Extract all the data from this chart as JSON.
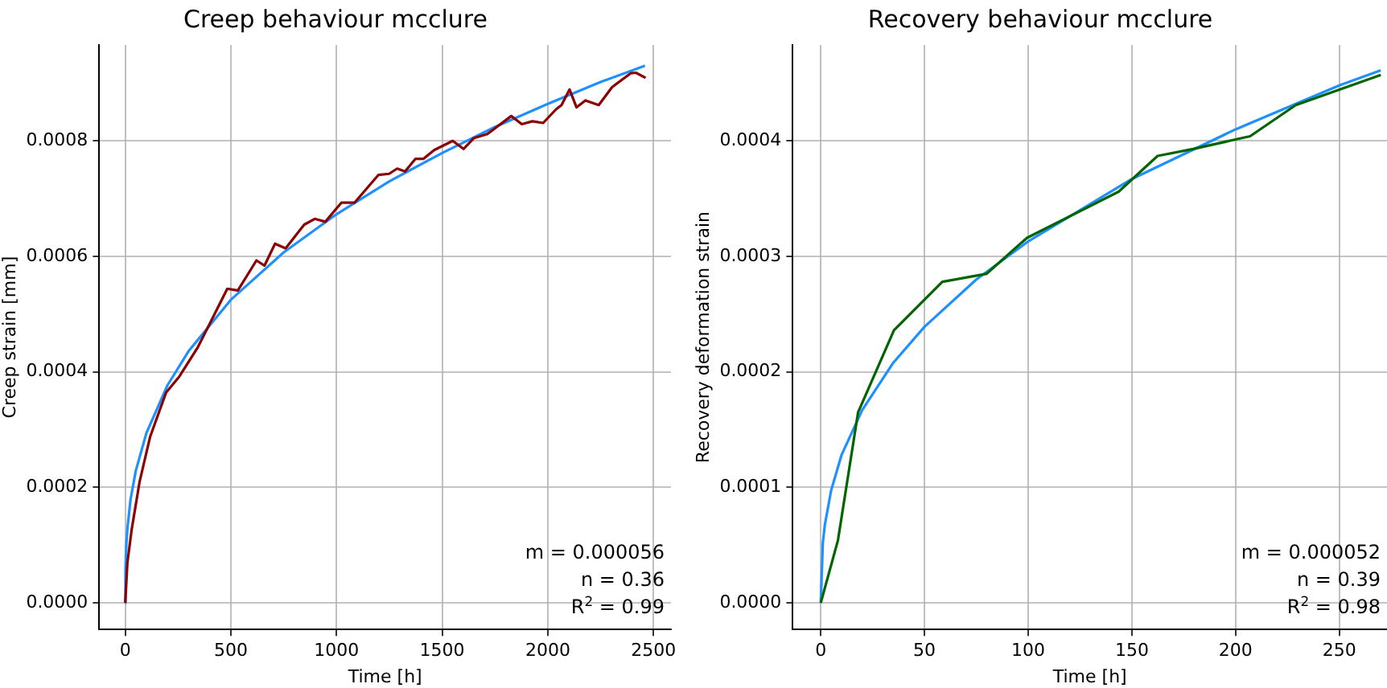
{
  "chart_data": [
    {
      "type": "line",
      "title": "Creep behaviour mcclure",
      "xlabel": "Time [h]",
      "ylabel": "Creep strain [mm]",
      "xlim": [
        -123,
        2583
      ],
      "xticks": [
        0,
        500,
        1000,
        1500,
        2000,
        2500
      ],
      "ylim": [
        -4.6e-05,
        0.000966
      ],
      "yticks": [
        {
          "value": 0,
          "label": "0.0000"
        },
        {
          "value": 0.0002,
          "label": "0.0002"
        },
        {
          "value": 0.0004,
          "label": "0.0004"
        },
        {
          "value": 0.0006,
          "label": "0.0006"
        },
        {
          "value": 0.0008,
          "label": "0.0008"
        }
      ],
      "grid": true,
      "marker": "none",
      "line_style": "solid",
      "annotations": [
        "m = 0.000056",
        "n = 0.36",
        "R$^{2}$ = 0.99"
      ],
      "series": [
        {
          "color": "#8b0000",
          "x": [
            0,
            10,
            30,
            68,
            118,
            193,
            256,
            344,
            420,
            483,
            533,
            621,
            659,
            709,
            759,
            847,
            897,
            947,
            1023,
            1085,
            1198,
            1249,
            1287,
            1324,
            1374,
            1412,
            1462,
            1550,
            1601,
            1651,
            1714,
            1827,
            1877,
            1927,
            1978,
            2040,
            2065,
            2103,
            2136,
            2178,
            2241,
            2304,
            2392,
            2417,
            2463
          ],
          "values": [
            0,
            6.9e-05,
            0.000126,
            0.00021,
            0.000288,
            0.000364,
            0.000392,
            0.000443,
            0.000498,
            0.000544,
            0.000541,
            0.000593,
            0.000584,
            0.000622,
            0.000614,
            0.000655,
            0.000665,
            0.00066,
            0.000693,
            0.000693,
            0.000741,
            0.000743,
            0.000752,
            0.000747,
            0.000769,
            0.000769,
            0.000784,
            0.0008,
            0.000786,
            0.000805,
            0.000812,
            0.000843,
            0.000829,
            0.000834,
            0.000831,
            0.000855,
            0.000862,
            0.000889,
            0.000858,
            0.00087,
            0.000862,
            0.000893,
            0.000917,
            0.000918,
            0.000909
          ]
        },
        {
          "type": "line",
          "color": "#1e90ff",
          "x": [
            0,
            1,
            5,
            10,
            25,
            50,
            100,
            200,
            300,
            500,
            750,
            1000,
            1250,
            1500,
            1750,
            2000,
            2250,
            2460
          ],
          "values": [
            0,
            5.6e-05,
            0.0001,
            0.000128,
            0.000179,
            0.000229,
            0.000294,
            0.000377,
            0.000436,
            0.000525,
            0.000607,
            0.000673,
            0.00073,
            0.000779,
            0.000824,
            0.000864,
            0.000902,
            0.00093
          ]
        }
      ]
    },
    {
      "type": "line",
      "title": "Recovery behaviour mcclure",
      "xlabel": "Time [h]",
      "ylabel": "Recovery deformation strain",
      "xlim": [
        -13.5,
        273
      ],
      "xticks": [
        0,
        50,
        100,
        150,
        200,
        250
      ],
      "ylim": [
        -2.3e-05,
        0.000483
      ],
      "yticks": [
        {
          "value": 0,
          "label": "0.0000"
        },
        {
          "value": 0.0001,
          "label": "0.0001"
        },
        {
          "value": 0.0002,
          "label": "0.0002"
        },
        {
          "value": 0.0003,
          "label": "0.0003"
        },
        {
          "value": 0.0004,
          "label": "0.0004"
        }
      ],
      "grid": true,
      "marker": "none",
      "line_style": "solid",
      "annotations": [
        "m = 0.000052",
        "n = 0.39",
        "R$^{2}$ = 0.98"
      ],
      "series": [
        {
          "color": "#006400",
          "x": [
            0,
            8.3,
            18,
            35.3,
            58.6,
            80,
            99.4,
            143.6,
            162.4,
            179.5,
            207,
            229,
            270
          ],
          "values": [
            0,
            5.43e-05,
            0.000165,
            0.000236,
            0.000278,
            0.000285,
            0.000316,
            0.000356,
            0.000387,
            0.000393,
            0.000404,
            0.000431,
            0.000457
          ]
        },
        {
          "type": "line",
          "color": "#1e90ff",
          "x": [
            0,
            1,
            2,
            5,
            10,
            20,
            35,
            50,
            75,
            100,
            150,
            200,
            250,
            270
          ],
          "values": [
            0,
            5.2e-05,
            6.8e-05,
            9.74e-05,
            0.000128,
            0.000167,
            0.000208,
            0.000239,
            0.00028,
            0.000313,
            0.000367,
            0.00041,
            0.000448,
            0.000461
          ]
        }
      ]
    }
  ]
}
